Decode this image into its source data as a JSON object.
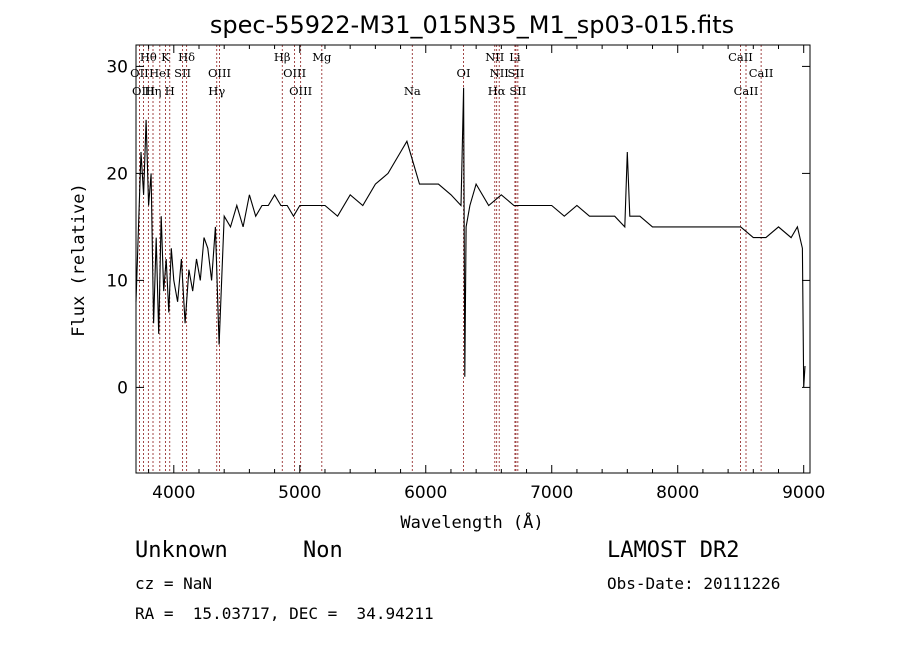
{
  "chart_data": {
    "type": "line",
    "title": "spec-55922-M31_015N35_M1_sp03-015.fits",
    "xlabel": "Wavelength (Å)",
    "ylabel": "Flux (relative)",
    "xlim": [
      3700,
      9050
    ],
    "ylim": [
      -8,
      32
    ],
    "xticks": [
      4000,
      5000,
      6000,
      7000,
      8000,
      9000
    ],
    "yticks": [
      0,
      10,
      20,
      30
    ],
    "series": [
      {
        "x": [
          3700,
          3720,
          3740,
          3760,
          3780,
          3800,
          3820,
          3840,
          3860,
          3880,
          3900,
          3920,
          3940,
          3960,
          3980,
          4000,
          4030,
          4060,
          4090,
          4120,
          4150,
          4180,
          4210,
          4240,
          4270,
          4300,
          4330,
          4360,
          4400,
          4450,
          4500,
          4550,
          4600,
          4650,
          4700,
          4750,
          4800,
          4850,
          4900,
          4950,
          5000,
          5100,
          5200,
          5300,
          5400,
          5500,
          5600,
          5700,
          5800,
          5850,
          5900,
          5950,
          6000,
          6100,
          6200,
          6280,
          6300,
          6310,
          6320,
          6350,
          6400,
          6500,
          6600,
          6700,
          6800,
          6900,
          7000,
          7100,
          7200,
          7300,
          7400,
          7500,
          7580,
          7600,
          7620,
          7700,
          7800,
          7900,
          8000,
          8100,
          8200,
          8300,
          8400,
          8500,
          8600,
          8700,
          8800,
          8900,
          8950,
          8990,
          9000,
          9010
        ],
        "y": [
          8,
          15,
          22,
          18,
          25,
          17,
          20,
          6,
          14,
          5,
          16,
          9,
          12,
          7,
          13,
          10,
          8,
          12,
          6,
          11,
          9,
          12,
          10,
          14,
          13,
          10,
          15,
          4,
          16,
          15,
          17,
          15,
          18,
          16,
          17,
          17,
          18,
          17,
          17,
          16,
          17,
          17,
          17,
          16,
          18,
          17,
          19,
          20,
          22,
          23,
          21,
          19,
          19,
          19,
          18,
          17,
          28,
          1,
          15,
          17,
          19,
          17,
          18,
          17,
          17,
          17,
          17,
          16,
          17,
          16,
          16,
          16,
          15,
          22,
          16,
          16,
          15,
          15,
          15,
          15,
          15,
          15,
          15,
          15,
          14,
          14,
          15,
          14,
          15,
          13,
          0,
          2
        ]
      }
    ]
  },
  "spectral_lines": [
    {
      "name": "Hθ",
      "wave": 3798,
      "row": 0
    },
    {
      "name": "K",
      "wave": 3934,
      "row": 0
    },
    {
      "name": "Hδ",
      "wave": 4102,
      "row": 0
    },
    {
      "name": "OII",
      "wave": 3727,
      "row": 1
    },
    {
      "name": "HeI",
      "wave": 3889,
      "row": 1
    },
    {
      "name": "SII",
      "wave": 4070,
      "row": 1
    },
    {
      "name": "OIII",
      "wave": 4363,
      "row": 1
    },
    {
      "name": "OIII",
      "wave": 3760,
      "row": 2
    },
    {
      "name": "Hη",
      "wave": 3835,
      "row": 2
    },
    {
      "name": "H",
      "wave": 3968,
      "row": 2
    },
    {
      "name": "Hγ",
      "wave": 4341,
      "row": 2
    },
    {
      "name": "Hβ",
      "wave": 4861,
      "row": 0
    },
    {
      "name": "OIII",
      "wave": 4959,
      "row": 1
    },
    {
      "name": "OIII",
      "wave": 5007,
      "row": 2
    },
    {
      "name": "Mg",
      "wave": 5175,
      "row": 0
    },
    {
      "name": "Na",
      "wave": 5893,
      "row": 2
    },
    {
      "name": "OI",
      "wave": 6300,
      "row": 1
    },
    {
      "name": "NII",
      "wave": 6548,
      "row": 0
    },
    {
      "name": "NII",
      "wave": 6583,
      "row": 1
    },
    {
      "name": "Hα",
      "wave": 6563,
      "row": 2
    },
    {
      "name": "Li",
      "wave": 6708,
      "row": 0
    },
    {
      "name": "SII",
      "wave": 6716,
      "row": 1
    },
    {
      "name": "SII",
      "wave": 6731,
      "row": 2
    },
    {
      "name": "CaII",
      "wave": 8498,
      "row": 0
    },
    {
      "name": "CaII",
      "wave": 8662,
      "row": 1
    },
    {
      "name": "CaII",
      "wave": 8542,
      "row": 2
    }
  ],
  "info": {
    "class": "Unknown",
    "subclass": "Non",
    "survey": "LAMOST DR2",
    "cz": "cz = NaN",
    "obs_date": "Obs-Date: 20111226",
    "radec": "RA =  15.03717, DEC =  34.94211"
  }
}
